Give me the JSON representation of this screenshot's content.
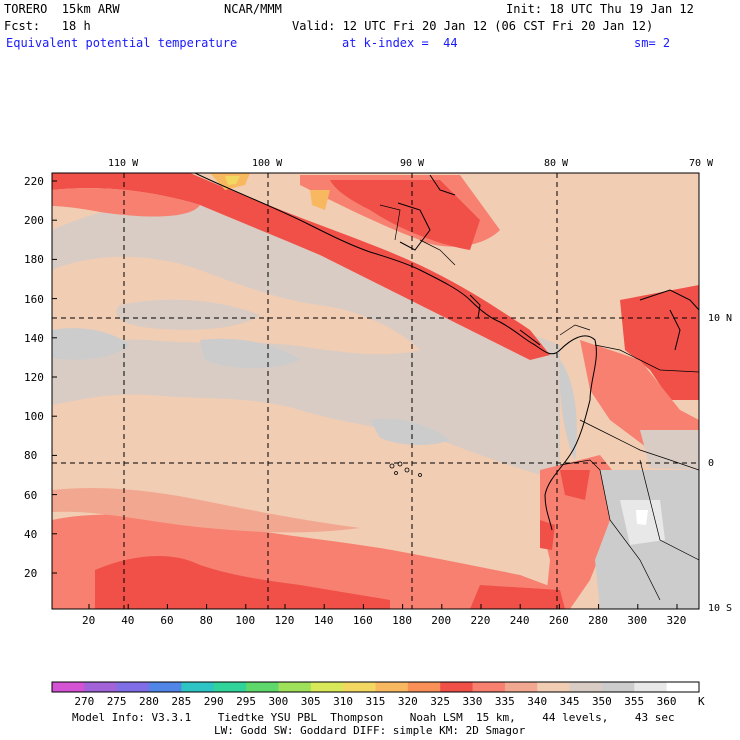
{
  "header": {
    "model": "TORERO  15km ARW",
    "org": "NCAR/MMM",
    "init": "Init: 18 UTC Thu 19 Jan 12",
    "fcst": "Fcst:   18 h",
    "valid": "Valid: 12 UTC Fri 20 Jan 12 (06 CST Fri 20 Jan 12)",
    "field": "Equivalent potential temperature",
    "level": "at k-index =  44",
    "smooth": "sm= 2"
  },
  "lon_labels": [
    "110 W",
    "100 W",
    "90 W",
    "80 W",
    "70 W"
  ],
  "lat_labels": [
    "10 N",
    "0",
    "10 S"
  ],
  "y_ticks": [
    "220",
    "200",
    "180",
    "160",
    "140",
    "120",
    "100",
    "80",
    "60",
    "40",
    "20"
  ],
  "x_ticks": [
    "20",
    "40",
    "60",
    "80",
    "100",
    "120",
    "140",
    "160",
    "180",
    "200",
    "220",
    "240",
    "260",
    "280",
    "300",
    "320"
  ],
  "colorbar": {
    "labels": [
      "270",
      "275",
      "280",
      "285",
      "290",
      "295",
      "300",
      "305",
      "310",
      "315",
      "320",
      "325",
      "330",
      "335",
      "340",
      "345",
      "350",
      "355",
      "360"
    ],
    "unit": "K",
    "colors": [
      "#d452d4",
      "#a262d8",
      "#7f6ee6",
      "#4f86e8",
      "#2ec4c4",
      "#30d49a",
      "#5ed86a",
      "#9ee05a",
      "#d8e858",
      "#f2d860",
      "#f8b860",
      "#f89058",
      "#f05048",
      "#f78070",
      "#f2a890",
      "#f1cdb4",
      "#d9ccc4",
      "#cccccc",
      "#e8e8e8",
      "#ffffff"
    ]
  },
  "footer": {
    "line1": "Model Info: V3.3.1    Tiedtke YSU PBL  Thompson    Noah LSM  15 km,    44 levels,    43 sec",
    "line2": "LW: Godd SW: Goddard DIFF: simple KM: 2D Smagor"
  }
}
